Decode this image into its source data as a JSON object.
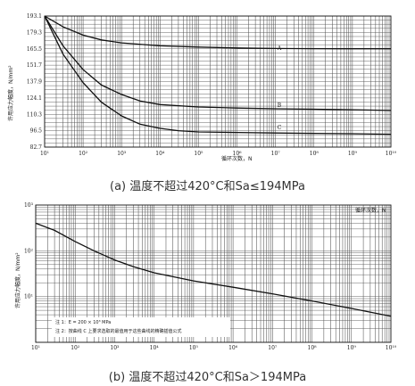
{
  "chart_data": [
    {
      "type": "line",
      "caption": "(a) 温度不超过420°C和Sa≤194MPa",
      "xlabel": "循环次数，N",
      "ylabel": "许用应力幅度，N/mm²",
      "x_scale": "log",
      "xlim": [
        10,
        10000000000
      ],
      "ylim": [
        82.7,
        193.1
      ],
      "x_ticks": [
        "10¹",
        "10²",
        "10³",
        "10⁴",
        "10⁵",
        "10⁶",
        "10⁷",
        "10⁸",
        "10⁹",
        "10¹⁰"
      ],
      "y_ticks": [
        "193.1",
        "179.3",
        "165.5",
        "151.7",
        "137.9",
        "124.1",
        "110.3",
        "96.5",
        "82.7"
      ],
      "series": [
        {
          "name": "A",
          "x": [
            10,
            30,
            100,
            300,
            1000,
            10000,
            100000,
            1000000,
            10000000,
            100000000,
            1000000000,
            10000000000
          ],
          "y": [
            193.1,
            184,
            177,
            173,
            170.5,
            168,
            167,
            166.2,
            165.8,
            165.6,
            165.5,
            165.5
          ]
        },
        {
          "name": "B",
          "x": [
            10,
            30,
            100,
            300,
            1000,
            3000,
            10000,
            100000,
            1000000,
            10000000,
            100000000,
            1000000000,
            10000000000
          ],
          "y": [
            193.1,
            168,
            148,
            135,
            127,
            121.5,
            118.5,
            116.5,
            115.6,
            115,
            114.6,
            114.2,
            113.6
          ]
        },
        {
          "name": "C",
          "x": [
            10,
            30,
            100,
            300,
            1000,
            3000,
            10000,
            30000,
            100000,
            1000000,
            10000000,
            100000000,
            1000000000,
            10000000000
          ],
          "y": [
            193.1,
            161,
            137,
            120.5,
            109,
            102,
            98.5,
            96.5,
            95.5,
            95,
            94.6,
            94.3,
            94,
            93.5
          ]
        }
      ]
    },
    {
      "type": "line",
      "caption": "(b) 温度不超过420°C和Sa＞194MPa",
      "xlabel": "循环次数，N",
      "ylabel": "许用应力幅度，N/mm²",
      "x_scale": "log",
      "y_scale": "log",
      "xlim": [
        10,
        10000000000
      ],
      "ylim": [
        1,
        1000
      ],
      "x_ticks": [
        "10¹",
        "10²",
        "10³",
        "10⁴",
        "10⁵",
        "10⁶",
        "10⁷",
        "10⁸",
        "10⁹",
        "10¹⁰"
      ],
      "y_ticks": [
        "10³",
        "10²",
        "10¹"
      ],
      "notes": [
        "注 1：E = 200 × 10³ MPa",
        "注 2：按曲线 C 上要求选取的最值用于这些曲线的精确插值公式"
      ],
      "series": [
        {
          "name": "",
          "x": [
            10,
            30,
            100,
            300,
            1000,
            3000,
            10000,
            100000,
            1000000,
            10000000,
            100000000,
            1000000000,
            10000000000
          ],
          "y": [
            400,
            280,
            160,
            100,
            63,
            45,
            33,
            22,
            16,
            11.5,
            8,
            5.5,
            3.7
          ]
        }
      ]
    }
  ]
}
